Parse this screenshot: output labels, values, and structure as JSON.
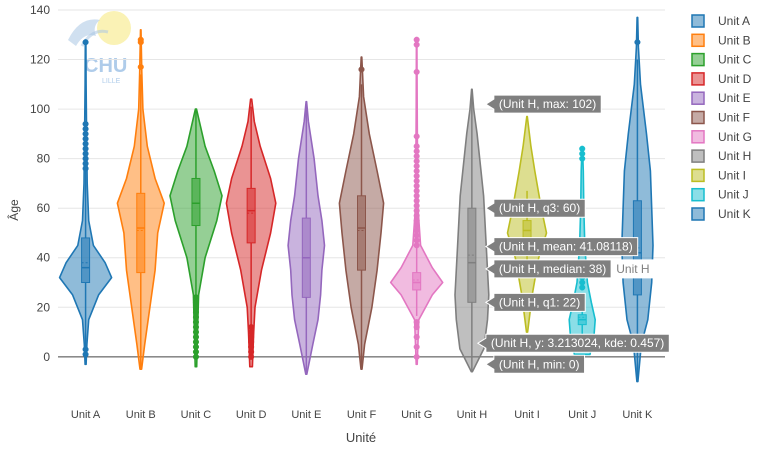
{
  "logo": {
    "text": "CHU",
    "subtext": "LILLE"
  },
  "chart_data": {
    "type": "violin",
    "title": "",
    "xlabel": "Unité",
    "ylabel": "Âge",
    "ylim": [
      -15,
      140
    ],
    "yticks": [
      0,
      20,
      40,
      60,
      80,
      100,
      120,
      140
    ],
    "grid": true,
    "legend_position": "right",
    "categories": [
      "Unit A",
      "Unit B",
      "Unit C",
      "Unit D",
      "Unit E",
      "Unit F",
      "Unit G",
      "Unit H",
      "Unit I",
      "Unit J",
      "Unit K"
    ],
    "series": [
      {
        "name": "Unit A",
        "color": "#1f77b4",
        "min": -3,
        "max": 127,
        "q1": 30,
        "median": 36,
        "q3": 48,
        "mean": 38,
        "profile": [
          [
            -3,
            0.02
          ],
          [
            5,
            0.05
          ],
          [
            15,
            0.12
          ],
          [
            25,
            0.5
          ],
          [
            32,
            1.0
          ],
          [
            38,
            0.75
          ],
          [
            45,
            0.3
          ],
          [
            55,
            0.12
          ],
          [
            70,
            0.06
          ],
          [
            90,
            0.04
          ],
          [
            110,
            0.02
          ],
          [
            127,
            0.01
          ]
        ],
        "outliers": [
          1,
          3,
          76,
          78,
          80,
          82,
          84,
          86,
          88,
          90,
          92,
          94,
          127
        ]
      },
      {
        "name": "Unit B",
        "color": "#ff7f0e",
        "min": -5,
        "max": 132,
        "q1": 34,
        "median": 52,
        "q3": 66,
        "mean": 51,
        "profile": [
          [
            -5,
            0.03
          ],
          [
            5,
            0.15
          ],
          [
            20,
            0.35
          ],
          [
            35,
            0.55
          ],
          [
            50,
            0.65
          ],
          [
            62,
            0.9
          ],
          [
            72,
            0.55
          ],
          [
            85,
            0.25
          ],
          [
            100,
            0.08
          ],
          [
            115,
            0.04
          ],
          [
            132,
            0.01
          ]
        ],
        "outliers": [
          117,
          127,
          128
        ]
      },
      {
        "name": "Unit C",
        "color": "#2ca02c",
        "min": -4,
        "max": 100,
        "q1": 53,
        "median": 62,
        "q3": 72,
        "mean": 62,
        "profile": [
          [
            -4,
            0.03
          ],
          [
            10,
            0.06
          ],
          [
            25,
            0.1
          ],
          [
            40,
            0.35
          ],
          [
            55,
            0.8
          ],
          [
            65,
            1.0
          ],
          [
            75,
            0.7
          ],
          [
            85,
            0.35
          ],
          [
            100,
            0.02
          ]
        ],
        "outliers": [
          0,
          2,
          4,
          6,
          8,
          10,
          12,
          14,
          16,
          18,
          20,
          22,
          24
        ]
      },
      {
        "name": "Unit D",
        "color": "#d62728",
        "min": -4,
        "max": 104,
        "q1": 46,
        "median": 59,
        "q3": 68,
        "mean": 58,
        "profile": [
          [
            -4,
            0.05
          ],
          [
            10,
            0.1
          ],
          [
            20,
            0.15
          ],
          [
            35,
            0.4
          ],
          [
            50,
            0.75
          ],
          [
            62,
            0.95
          ],
          [
            72,
            0.75
          ],
          [
            85,
            0.35
          ],
          [
            95,
            0.12
          ],
          [
            104,
            0.02
          ]
        ],
        "outliers": [
          0,
          2,
          4,
          6,
          8,
          10,
          12
        ]
      },
      {
        "name": "Unit E",
        "color": "#9467bd",
        "min": -7,
        "max": 103,
        "q1": 24,
        "median": 40,
        "q3": 56,
        "mean": 40,
        "profile": [
          [
            -7,
            0.02
          ],
          [
            5,
            0.25
          ],
          [
            15,
            0.45
          ],
          [
            25,
            0.55
          ],
          [
            35,
            0.6
          ],
          [
            45,
            0.7
          ],
          [
            55,
            0.6
          ],
          [
            65,
            0.45
          ],
          [
            80,
            0.3
          ],
          [
            95,
            0.08
          ],
          [
            103,
            0.01
          ]
        ],
        "outliers": []
      },
      {
        "name": "Unit F",
        "color": "#8c564b",
        "min": -5,
        "max": 121,
        "q1": 35,
        "median": 52,
        "q3": 65,
        "mean": 51,
        "profile": [
          [
            -5,
            0.02
          ],
          [
            5,
            0.12
          ],
          [
            20,
            0.4
          ],
          [
            35,
            0.6
          ],
          [
            50,
            0.75
          ],
          [
            62,
            0.85
          ],
          [
            75,
            0.6
          ],
          [
            90,
            0.3
          ],
          [
            105,
            0.08
          ],
          [
            121,
            0.01
          ]
        ],
        "outliers": [
          116
        ]
      },
      {
        "name": "Unit G",
        "color": "#e377c2",
        "min": -3,
        "max": 128,
        "q1": 27,
        "median": 30,
        "q3": 34,
        "mean": 31,
        "profile": [
          [
            -3,
            0.02
          ],
          [
            15,
            0.08
          ],
          [
            25,
            0.6
          ],
          [
            30,
            1.0
          ],
          [
            36,
            0.6
          ],
          [
            45,
            0.15
          ],
          [
            60,
            0.05
          ],
          [
            80,
            0.03
          ],
          [
            100,
            0.02
          ],
          [
            128,
            0.01
          ]
        ],
        "outliers": [
          0,
          4,
          8,
          12,
          14,
          45,
          47,
          49,
          51,
          53,
          55,
          57,
          59,
          61,
          63,
          65,
          67,
          69,
          71,
          73,
          75,
          77,
          79,
          81,
          83,
          85,
          89,
          115,
          126,
          128
        ]
      },
      {
        "name": "Unit H",
        "color": "#7f7f7f",
        "min": -6,
        "max": 108,
        "q1": 22,
        "median": 38,
        "q3": 60,
        "mean": 41.08118,
        "profile": [
          [
            -6,
            0.02
          ],
          [
            3.21,
            0.46
          ],
          [
            15,
            0.6
          ],
          [
            25,
            0.65
          ],
          [
            35,
            0.6
          ],
          [
            45,
            0.55
          ],
          [
            55,
            0.5
          ],
          [
            65,
            0.45
          ],
          [
            75,
            0.35
          ],
          [
            90,
            0.2
          ],
          [
            100,
            0.07
          ],
          [
            108,
            0.01
          ]
        ],
        "outliers": []
      },
      {
        "name": "Unit I",
        "color": "#bcbd22",
        "min": 10,
        "max": 97,
        "q1": 47,
        "median": 51,
        "q3": 55,
        "mean": 51,
        "profile": [
          [
            10,
            0.02
          ],
          [
            25,
            0.2
          ],
          [
            40,
            0.45
          ],
          [
            50,
            0.75
          ],
          [
            60,
            0.55
          ],
          [
            75,
            0.3
          ],
          [
            85,
            0.15
          ],
          [
            97,
            0.01
          ]
        ],
        "outliers": []
      },
      {
        "name": "Unit J",
        "color": "#17becf",
        "min": 1,
        "max": 84,
        "q1": 13,
        "median": 15,
        "q3": 17,
        "mean": 16,
        "profile": [
          [
            1,
            0.3
          ],
          [
            8,
            0.45
          ],
          [
            15,
            0.5
          ],
          [
            22,
            0.35
          ],
          [
            30,
            0.2
          ],
          [
            45,
            0.1
          ],
          [
            60,
            0.06
          ],
          [
            75,
            0.04
          ],
          [
            84,
            0.01
          ]
        ],
        "outliers": [
          28,
          30,
          32,
          80,
          82,
          84
        ]
      },
      {
        "name": "Unit K",
        "color": "#1f77b4",
        "min": -10,
        "max": 137,
        "q1": 25,
        "median": 42,
        "q3": 63,
        "mean": 44,
        "profile": [
          [
            -10,
            0.02
          ],
          [
            5,
            0.15
          ],
          [
            15,
            0.4
          ],
          [
            30,
            0.55
          ],
          [
            45,
            0.6
          ],
          [
            60,
            0.55
          ],
          [
            75,
            0.5
          ],
          [
            90,
            0.35
          ],
          [
            110,
            0.12
          ],
          [
            125,
            0.04
          ],
          [
            137,
            0.01
          ]
        ],
        "outliers": [
          127
        ]
      }
    ],
    "hover": {
      "series": "Unit H",
      "labels": [
        {
          "text": "(Unit H, max: 102)",
          "y": 102
        },
        {
          "text": "(Unit H, q3: 60)",
          "y": 60
        },
        {
          "text": "(Unit H, mean: 41.08118)",
          "y": 41.08118
        },
        {
          "text": "(Unit H, median: 38)",
          "y": 38
        },
        {
          "text": "(Unit H, q1: 22)",
          "y": 22
        },
        {
          "text": "(Unit H, y: 3.213024, kde: 0.457)",
          "y": 3.213024
        },
        {
          "text": "(Unit H, min: 0)",
          "y": 0
        }
      ],
      "name_label": "Unit H"
    }
  }
}
